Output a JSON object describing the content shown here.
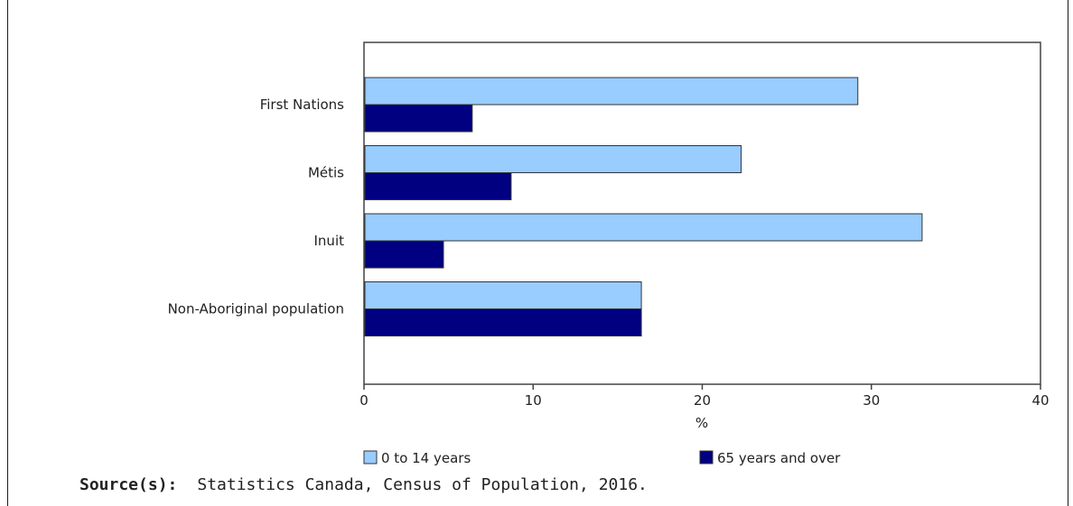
{
  "chart_data": {
    "type": "bar",
    "orientation": "horizontal",
    "categories": [
      "First Nations",
      "Métis",
      "Inuit",
      "Non-Aboriginal population"
    ],
    "series": [
      {
        "name": "0 to 14 years",
        "values": [
          29.2,
          22.3,
          33.0,
          16.4
        ],
        "color": "#99ccff"
      },
      {
        "name": "65 years and over",
        "values": [
          6.4,
          8.7,
          4.7,
          16.4
        ],
        "color": "#000080"
      }
    ],
    "xlabel": "%",
    "xlim": [
      0,
      40
    ],
    "xticks": [
      0,
      10,
      20,
      30,
      40
    ],
    "grid": false,
    "legend_position": "bottom"
  },
  "source": {
    "label": "Source(s):",
    "text": "Statistics Canada, Census of Population, 2016."
  }
}
